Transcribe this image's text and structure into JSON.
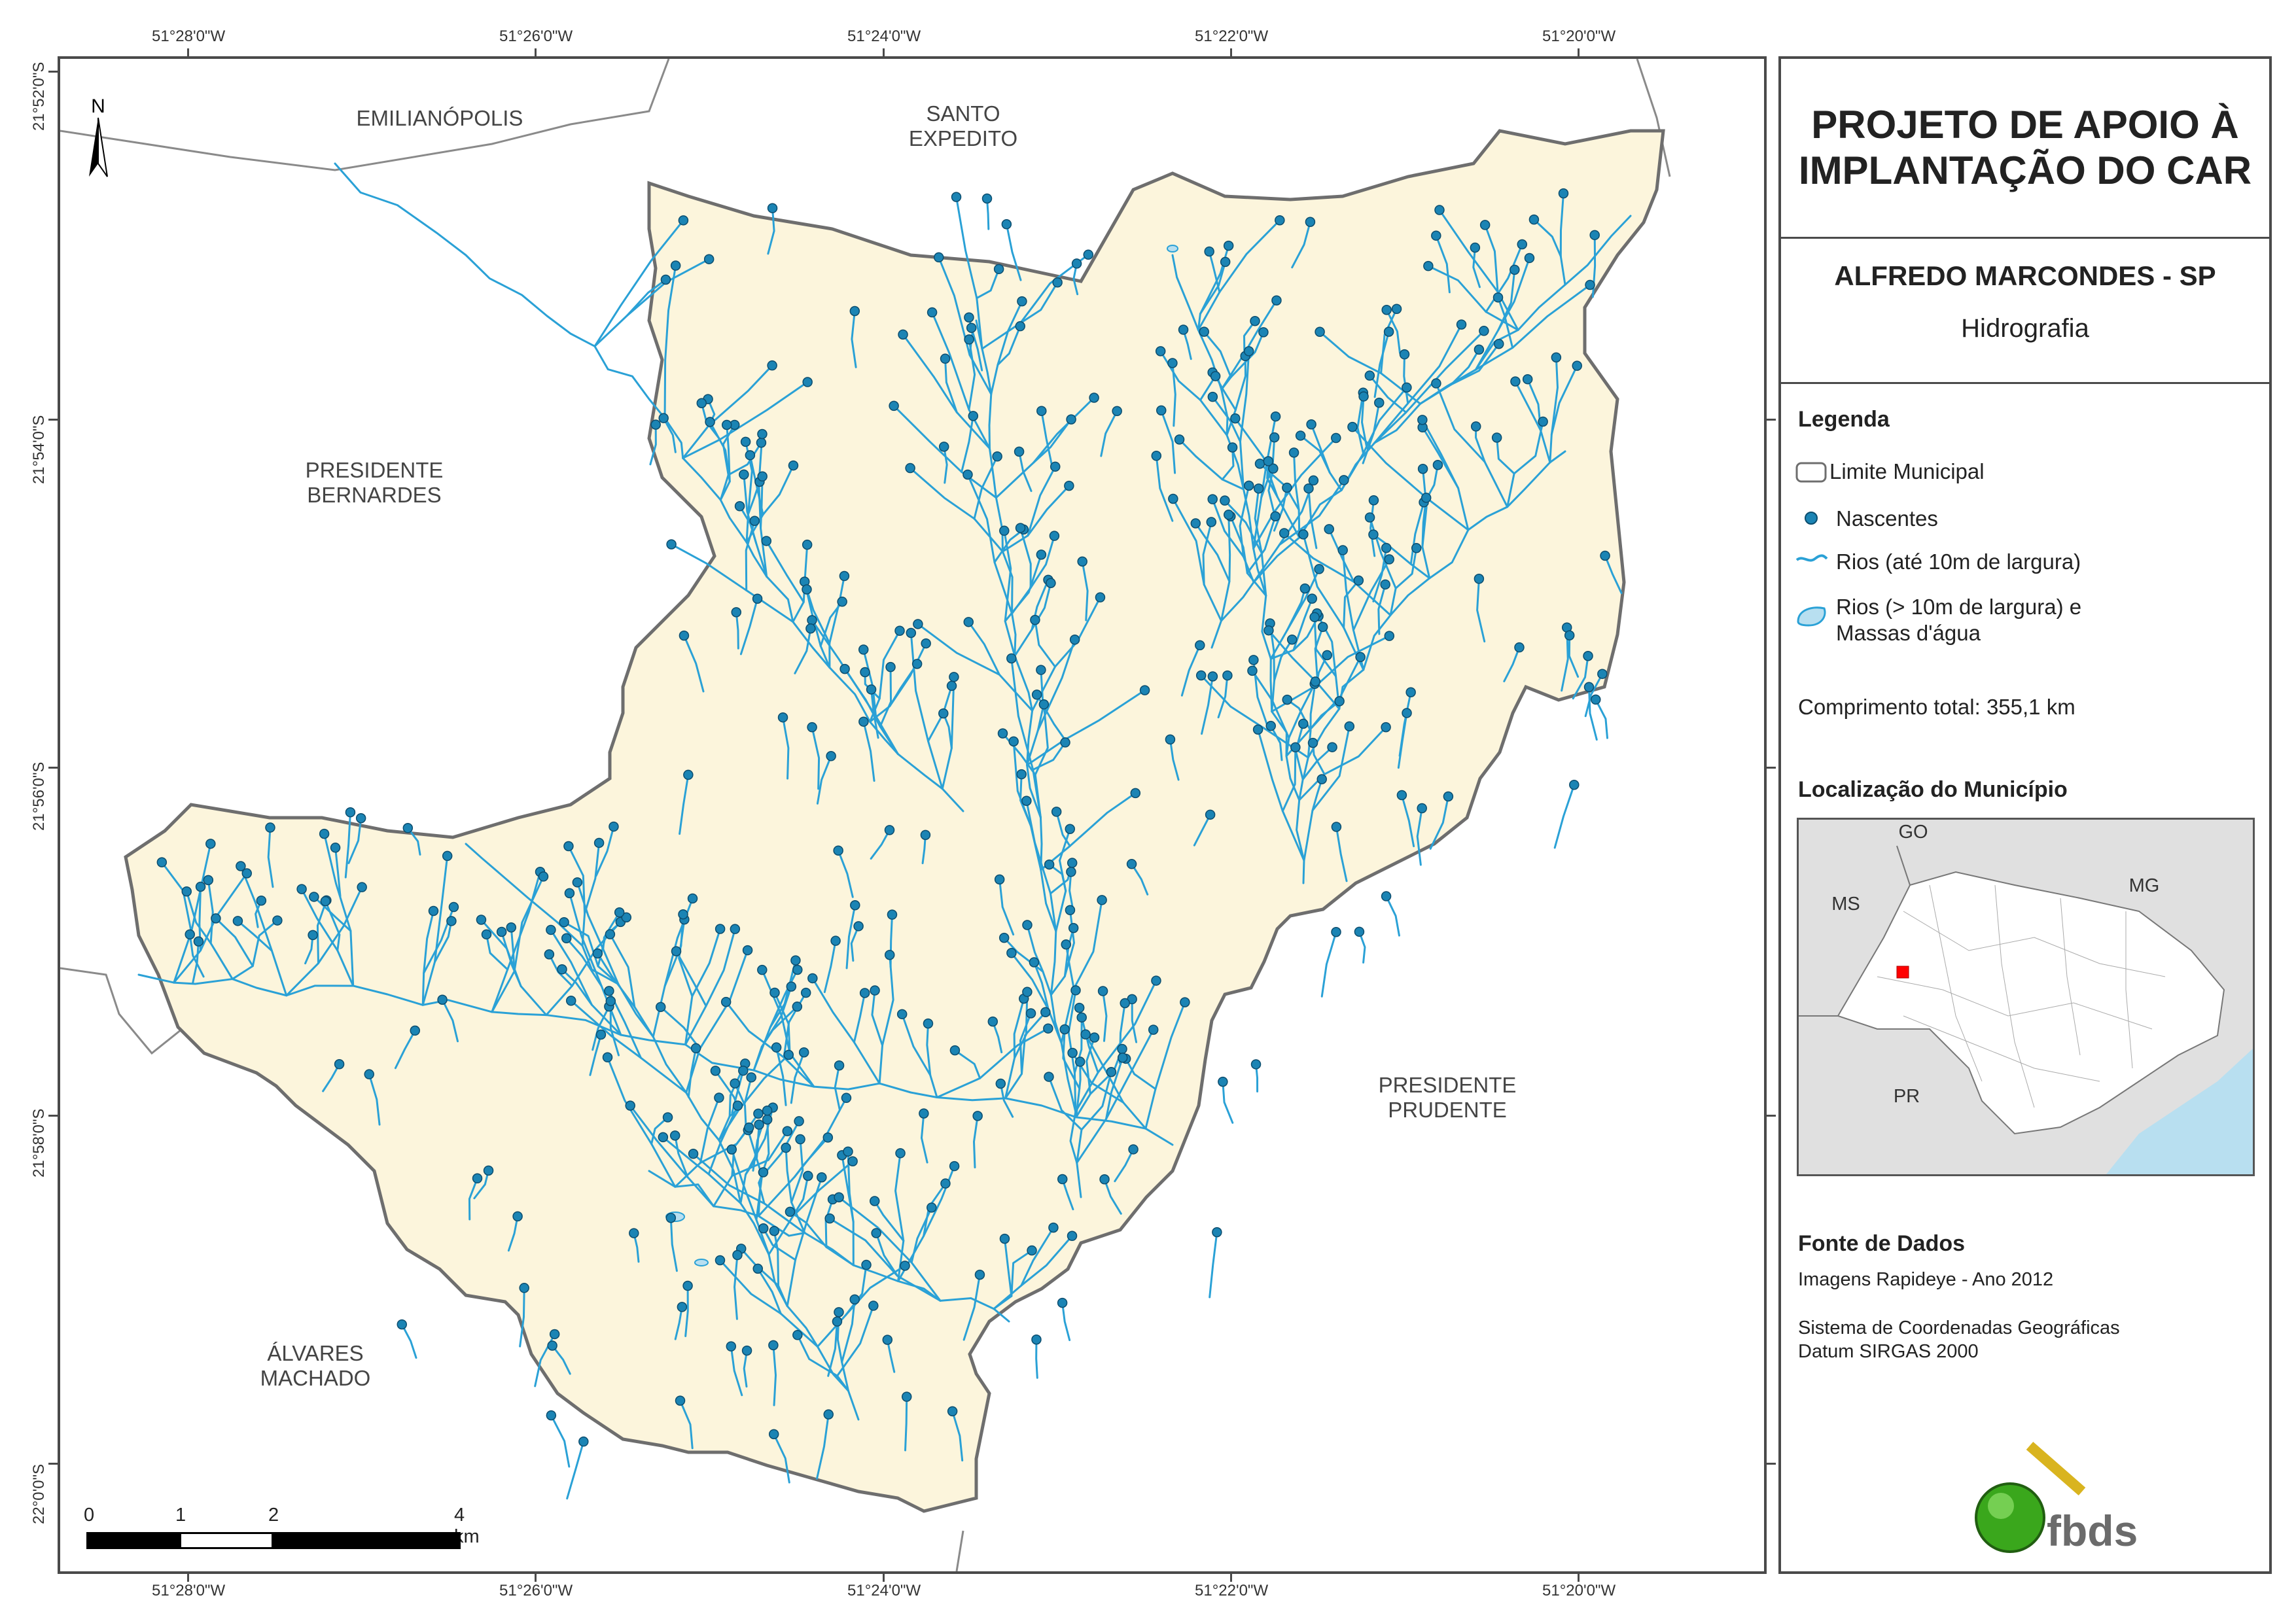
{
  "title": "PROJETO DE APOIO À IMPLANTAÇÃO DO CAR",
  "municipality": "ALFREDO MARCONDES - SP",
  "theme": "Hidrografia",
  "legend": {
    "heading": "Legenda",
    "items": [
      {
        "label": "Limite Municipal",
        "symbol": "polygon-outline"
      },
      {
        "label": "Nascentes",
        "symbol": "point"
      },
      {
        "label": "Rios (até 10m de largura)",
        "symbol": "line"
      },
      {
        "label": "Rios (> 10m de largura) e Massas d'água",
        "symbol": "water-polygon"
      }
    ],
    "total_length": "Comprimento total: 355,1 km"
  },
  "location": {
    "heading": "Localização do Município",
    "labels": [
      "GO",
      "MS",
      "MG",
      "PR"
    ]
  },
  "sources": {
    "heading": "Fonte de Dados",
    "imagery": "Imagens Rapideye - Ano 2012",
    "crs": "Sistema de Coordenadas Geográficas",
    "datum": "Datum SIRGAS 2000"
  },
  "logo_text": "fbds",
  "north_label": "N",
  "coords": {
    "lon": [
      "51°28'0\"W",
      "51°26'0\"W",
      "51°24'0\"W",
      "51°22'0\"W",
      "51°20'0\"W"
    ],
    "lat": [
      "21°52'0\"S",
      "21°54'0\"S",
      "21°56'0\"S",
      "21°58'0\"S",
      "22°0'0\"S"
    ]
  },
  "neighbors": [
    {
      "name": "EMILIANÓPOLIS"
    },
    {
      "name": "SANTO EXPEDITO"
    },
    {
      "name": "PRESIDENTE BERNARDES"
    },
    {
      "name": "PRESIDENTE PRUDENTE"
    },
    {
      "name": "ÁLVARES MACHADO"
    }
  ],
  "scale_labels": [
    "0",
    "1",
    "2",
    "4 km"
  ],
  "colors": {
    "municipality_fill": "#fcf5dc",
    "river": "#2aa1d6",
    "spring": "#1b84b4",
    "border": "#6e6e6e",
    "highlight": "#ff0000",
    "ocean": "#b8dff0"
  }
}
